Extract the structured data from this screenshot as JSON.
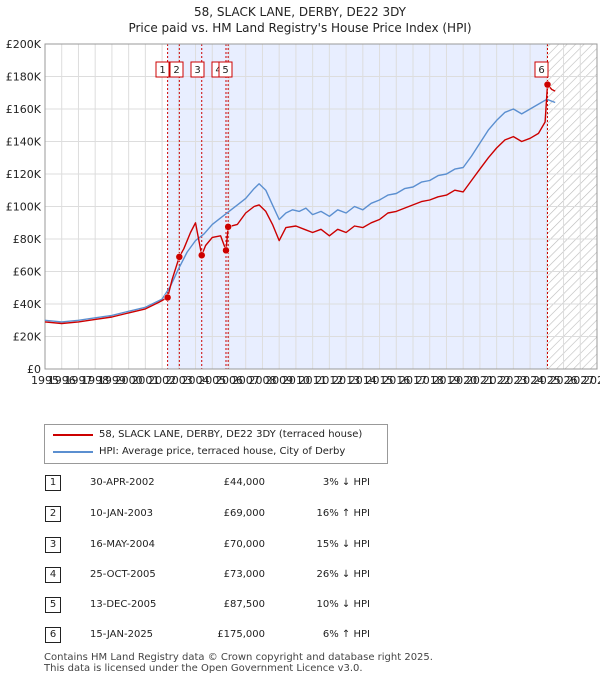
{
  "header": {
    "title": "58, SLACK LANE, DERBY, DE22 3DY",
    "subtitle": "Price paid vs. HM Land Registry's House Price Index (HPI)"
  },
  "colors": {
    "price_line": "#cc0000",
    "hpi_line": "#5b8fd0",
    "shade": "#e8eeff",
    "marker_line": "#cc0000"
  },
  "chart_data": {
    "type": "line",
    "xlim": [
      1995,
      2028
    ],
    "ylim": [
      0,
      200000
    ],
    "x_ticks": [
      "1995",
      "1996",
      "1997",
      "1998",
      "1999",
      "2000",
      "2001",
      "2002",
      "2003",
      "2004",
      "2005",
      "2006",
      "2007",
      "2008",
      "2009",
      "2010",
      "2011",
      "2012",
      "2013",
      "2014",
      "2015",
      "2016",
      "2017",
      "2018",
      "2019",
      "2020",
      "2021",
      "2022",
      "2023",
      "2024",
      "2025",
      "2026",
      "2027",
      "2028"
    ],
    "y_ticks": [
      {
        "value": 0,
        "label": "£0"
      },
      {
        "value": 20000,
        "label": "£20K"
      },
      {
        "value": 40000,
        "label": "£40K"
      },
      {
        "value": 60000,
        "label": "£60K"
      },
      {
        "value": 80000,
        "label": "£80K"
      },
      {
        "value": 100000,
        "label": "£100K"
      },
      {
        "value": 120000,
        "label": "£120K"
      },
      {
        "value": 140000,
        "label": "£140K"
      },
      {
        "value": 160000,
        "label": "£160K"
      },
      {
        "value": 180000,
        "label": "£180K"
      },
      {
        "value": 200000,
        "label": "£200K"
      }
    ],
    "shaded_span": [
      2002.33,
      2025.04
    ],
    "hatched_span": [
      2025.04,
      2028
    ],
    "series": [
      {
        "name": "58, SLACK LANE, DERBY, DE22 3DY (terraced house)",
        "color": "#cc0000",
        "points": [
          [
            1995.0,
            29000
          ],
          [
            1996.0,
            28000
          ],
          [
            1997.0,
            29000
          ],
          [
            1998.0,
            30500
          ],
          [
            1999.0,
            32000
          ],
          [
            2000.0,
            34500
          ],
          [
            2001.0,
            37000
          ],
          [
            2001.8,
            41000
          ],
          [
            2002.33,
            44000
          ],
          [
            2002.6,
            55000
          ],
          [
            2003.03,
            69000
          ],
          [
            2003.3,
            74000
          ],
          [
            2003.7,
            84000
          ],
          [
            2004.0,
            90000
          ],
          [
            2004.37,
            70000
          ],
          [
            2004.6,
            76000
          ],
          [
            2005.0,
            81000
          ],
          [
            2005.5,
            82000
          ],
          [
            2005.82,
            73000
          ],
          [
            2005.95,
            87500
          ],
          [
            2006.5,
            89000
          ],
          [
            2007.0,
            96000
          ],
          [
            2007.5,
            100000
          ],
          [
            2007.8,
            101000
          ],
          [
            2008.2,
            97000
          ],
          [
            2008.6,
            89000
          ],
          [
            2009.0,
            79000
          ],
          [
            2009.4,
            87000
          ],
          [
            2010.0,
            88000
          ],
          [
            2010.5,
            86000
          ],
          [
            2011.0,
            84000
          ],
          [
            2011.5,
            86000
          ],
          [
            2012.0,
            82000
          ],
          [
            2012.5,
            86000
          ],
          [
            2013.0,
            84000
          ],
          [
            2013.5,
            88000
          ],
          [
            2014.0,
            87000
          ],
          [
            2014.5,
            90000
          ],
          [
            2015.0,
            92000
          ],
          [
            2015.5,
            96000
          ],
          [
            2016.0,
            97000
          ],
          [
            2016.5,
            99000
          ],
          [
            2017.0,
            101000
          ],
          [
            2017.5,
            103000
          ],
          [
            2018.0,
            104000
          ],
          [
            2018.5,
            106000
          ],
          [
            2019.0,
            107000
          ],
          [
            2019.5,
            110000
          ],
          [
            2020.0,
            109000
          ],
          [
            2020.5,
            116000
          ],
          [
            2021.0,
            123000
          ],
          [
            2021.5,
            130000
          ],
          [
            2022.0,
            136000
          ],
          [
            2022.5,
            141000
          ],
          [
            2023.0,
            143000
          ],
          [
            2023.5,
            140000
          ],
          [
            2024.0,
            142000
          ],
          [
            2024.5,
            145000
          ],
          [
            2024.9,
            152000
          ],
          [
            2025.04,
            175000
          ],
          [
            2025.3,
            172000
          ],
          [
            2025.5,
            171000
          ]
        ]
      },
      {
        "name": "HPI: Average price, terraced house, City of Derby",
        "color": "#5b8fd0",
        "points": [
          [
            1995.0,
            30000
          ],
          [
            1996.0,
            29000
          ],
          [
            1997.0,
            30000
          ],
          [
            1998.0,
            31500
          ],
          [
            1999.0,
            33000
          ],
          [
            2000.0,
            35500
          ],
          [
            2001.0,
            38000
          ],
          [
            2002.0,
            43000
          ],
          [
            2002.5,
            51000
          ],
          [
            2003.0,
            62000
          ],
          [
            2003.5,
            72000
          ],
          [
            2004.0,
            79000
          ],
          [
            2004.5,
            83000
          ],
          [
            2005.0,
            89000
          ],
          [
            2005.5,
            93000
          ],
          [
            2006.0,
            97000
          ],
          [
            2006.5,
            101000
          ],
          [
            2007.0,
            105000
          ],
          [
            2007.5,
            111000
          ],
          [
            2007.8,
            114000
          ],
          [
            2008.2,
            110000
          ],
          [
            2008.6,
            101000
          ],
          [
            2009.0,
            92000
          ],
          [
            2009.4,
            96000
          ],
          [
            2009.8,
            98000
          ],
          [
            2010.2,
            97000
          ],
          [
            2010.6,
            99000
          ],
          [
            2011.0,
            95000
          ],
          [
            2011.5,
            97000
          ],
          [
            2012.0,
            94000
          ],
          [
            2012.5,
            98000
          ],
          [
            2013.0,
            96000
          ],
          [
            2013.5,
            100000
          ],
          [
            2014.0,
            98000
          ],
          [
            2014.5,
            102000
          ],
          [
            2015.0,
            104000
          ],
          [
            2015.5,
            107000
          ],
          [
            2016.0,
            108000
          ],
          [
            2016.5,
            111000
          ],
          [
            2017.0,
            112000
          ],
          [
            2017.5,
            115000
          ],
          [
            2018.0,
            116000
          ],
          [
            2018.5,
            119000
          ],
          [
            2019.0,
            120000
          ],
          [
            2019.5,
            123000
          ],
          [
            2020.0,
            124000
          ],
          [
            2020.5,
            131000
          ],
          [
            2021.0,
            139000
          ],
          [
            2021.5,
            147000
          ],
          [
            2022.0,
            153000
          ],
          [
            2022.5,
            158000
          ],
          [
            2023.0,
            160000
          ],
          [
            2023.5,
            157000
          ],
          [
            2024.0,
            160000
          ],
          [
            2024.5,
            163000
          ],
          [
            2025.0,
            166000
          ],
          [
            2025.5,
            164000
          ]
        ]
      }
    ],
    "sales": [
      {
        "id": "1",
        "date": "30-APR-2002",
        "x": 2002.33,
        "price": 44000,
        "price_label": "£44,000",
        "hpi": "3% ↓ HPI"
      },
      {
        "id": "2",
        "date": "10-JAN-2003",
        "x": 2003.03,
        "price": 69000,
        "price_label": "£69,000",
        "hpi": "16% ↑ HPI"
      },
      {
        "id": "3",
        "date": "16-MAY-2004",
        "x": 2004.37,
        "price": 70000,
        "price_label": "£70,000",
        "hpi": "15% ↓ HPI"
      },
      {
        "id": "4",
        "date": "25-OCT-2005",
        "x": 2005.82,
        "price": 73000,
        "price_label": "£73,000",
        "hpi": "26% ↓ HPI"
      },
      {
        "id": "5",
        "date": "13-DEC-2005",
        "x": 2005.95,
        "price": 87500,
        "price_label": "£87,500",
        "hpi": "10% ↓ HPI"
      },
      {
        "id": "6",
        "date": "15-JAN-2025",
        "x": 2025.04,
        "price": 175000,
        "price_label": "£175,000",
        "hpi": "6% ↑ HPI"
      }
    ]
  },
  "legend": {
    "price_label": "58, SLACK LANE, DERBY, DE22 3DY (terraced house)",
    "hpi_label": "HPI: Average price, terraced house, City of Derby"
  },
  "footer": {
    "line1": "Contains HM Land Registry data © Crown copyright and database right 2025.",
    "line2": "This data is licensed under the Open Government Licence v3.0."
  }
}
